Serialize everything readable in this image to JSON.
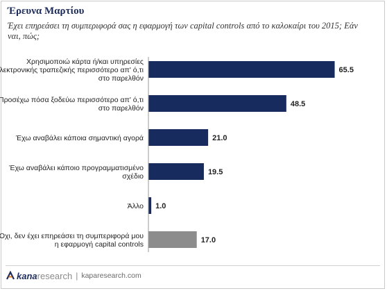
{
  "header": {
    "title": "Έρευνα Μαρτίου",
    "subtitle": "Έχει επηρεάσει τη συμπεριφορά σας η εφαρμογή των capital controls από το καλοκαίρι του 2015; Εάν ναι, πώς;"
  },
  "chart_data": {
    "type": "bar",
    "orientation": "horizontal",
    "title": "Έρευνα Μαρτίου",
    "subtitle": "Έχει επηρεάσει τη συμπεριφορά σας η εφαρμογή των capital controls από το καλοκαίρι του 2015; Εάν ναι, πώς;",
    "categories": [
      [
        "Χρησιμοποιώ κάρτα ή/και υπηρεσίες",
        "ηλεκτρονικής τραπεζικής περισσότερο απ' ό,τι",
        "στο παρελθόν"
      ],
      [
        "Προσέχω πόσα ξοδεύω περισσότερο απ' ό,τι",
        "στο παρελθόν"
      ],
      [
        "Έχω αναβάλει κάποια σημαντική αγορά"
      ],
      [
        "Έχω αναβάλει κάποιο προγραμματισμένο",
        "σχέδιο"
      ],
      [
        "Άλλο"
      ],
      [
        "Όχι, δεν έχει επηρεάσει τη συμπεριφορά μου",
        "η εφαρμογή capital controls"
      ]
    ],
    "values": [
      65.5,
      48.5,
      21.0,
      19.5,
      1.0,
      17.0
    ],
    "value_labels": [
      "65.5",
      "48.5",
      "21.0",
      "19.5",
      "1.0",
      "17.0"
    ],
    "colors": [
      "#172b5e",
      "#172b5e",
      "#172b5e",
      "#172b5e",
      "#172b5e",
      "#8c8c8c"
    ],
    "xlim": [
      0,
      70
    ],
    "grid": false,
    "legend": "none"
  },
  "footer": {
    "brand_kana": "kana",
    "brand_research": "research",
    "separator": "|",
    "url": "kaparesearch.com"
  }
}
